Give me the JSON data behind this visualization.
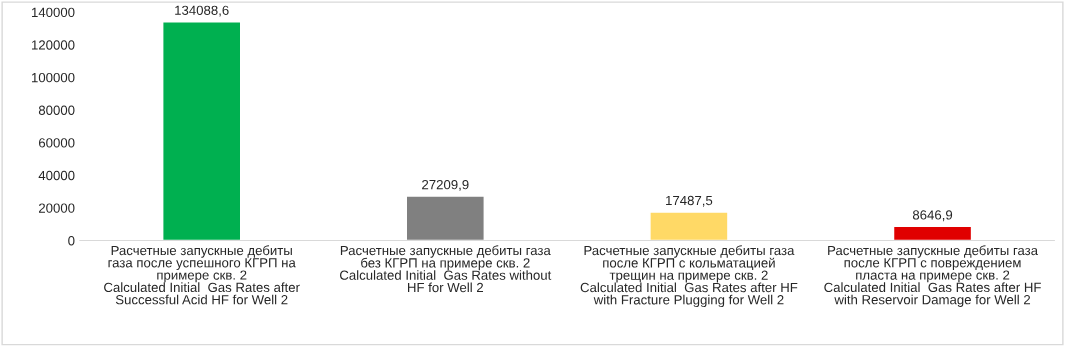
{
  "chart_data": {
    "type": "bar",
    "categories": [
      "Расчетные запускные дебиты\nгаза после успешного КГРП на\nпримере скв. 2\nCalculated Initial  Gas Rates after\nSuccessful Acid HF for Well 2",
      "Расчетные запускные дебиты газа\nбез КГРП на примере скв. 2\nCalculated Initial  Gas Rates without\nHF for Well 2",
      "Расчетные запускные дебиты газа\nпосле КГРП с кольматацией\nтрещин на примере скв. 2\nCalculated Initial  Gas Rates after HF\nwith Fracture Plugging for Well 2",
      "Расчетные запускные дебиты газа\nпосле КГРП с повреждением\nпласта на примере скв. 2\nCalculated Initial  Gas Rates after HF\nwith Reservoir Damage for Well 2"
    ],
    "values": [
      134088.6,
      27209.9,
      17487.5,
      8646.9
    ],
    "value_labels": [
      "134088,6",
      "27209,9",
      "17487,5",
      "8646,9"
    ],
    "colors": [
      "#00b050",
      "#808080",
      "#ffd966",
      "#e00000"
    ],
    "ylim": [
      0,
      140000
    ],
    "yticks": [
      0,
      20000,
      40000,
      60000,
      80000,
      100000,
      120000,
      140000
    ],
    "grid": false,
    "legend": false
  }
}
